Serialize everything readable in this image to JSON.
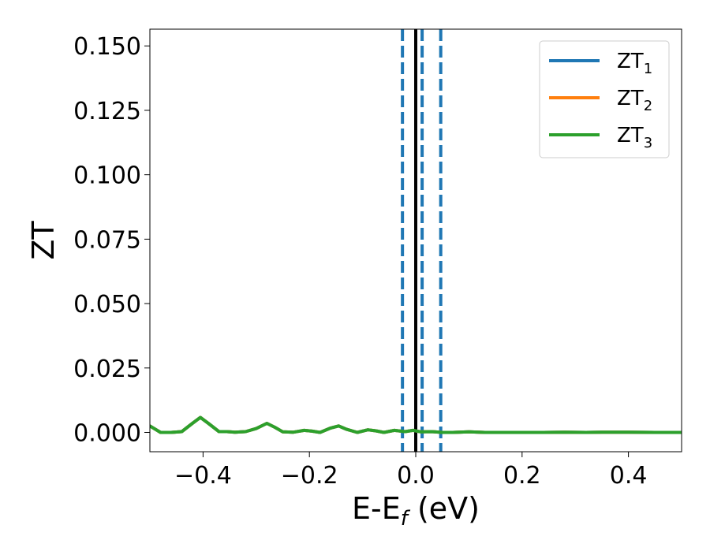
{
  "chart_data": {
    "type": "line",
    "title": "",
    "xlabel": "E-E",
    "xlabel_subscript": "f",
    "xlabel_unit": " (eV)",
    "ylabel": "ZT",
    "xlim": [
      -0.5,
      0.5
    ],
    "ylim": [
      -0.0075,
      0.1565
    ],
    "x_ticks": [
      -0.4,
      -0.2,
      0.0,
      0.2,
      0.4
    ],
    "x_tick_labels": [
      "−0.4",
      "−0.2",
      "0.0",
      "0.2",
      "0.4"
    ],
    "y_ticks": [
      0.0,
      0.025,
      0.05,
      0.075,
      0.1,
      0.125,
      0.15
    ],
    "y_tick_labels": [
      "0.000",
      "0.025",
      "0.050",
      "0.075",
      "0.100",
      "0.125",
      "0.150"
    ],
    "grid": false,
    "legend_position": "top-right",
    "vertical_lines": [
      {
        "x": 0.0,
        "style": "solid",
        "color": "#000000"
      },
      {
        "x": -0.025,
        "style": "dashed",
        "color": "#1f77b4"
      },
      {
        "x": 0.012,
        "style": "dashed",
        "color": "#1f77b4"
      },
      {
        "x": 0.047,
        "style": "dashed",
        "color": "#1f77b4"
      }
    ],
    "series": [
      {
        "name": "ZT",
        "name_subscript": "1",
        "color": "#1f77b4",
        "x": [
          -0.5,
          -0.48,
          -0.46,
          -0.44,
          -0.42,
          -0.405,
          -0.39,
          -0.37,
          -0.355,
          -0.34,
          -0.32,
          -0.3,
          -0.28,
          -0.265,
          -0.25,
          -0.23,
          -0.21,
          -0.195,
          -0.18,
          -0.16,
          -0.145,
          -0.13,
          -0.11,
          -0.09,
          -0.075,
          -0.06,
          -0.04,
          -0.02,
          -0.005,
          0.01,
          0.03,
          0.05,
          0.07,
          0.1,
          0.13,
          0.16,
          0.2,
          0.24,
          0.28,
          0.32,
          0.36,
          0.4,
          0.45,
          0.5
        ],
        "y": [
          0.0025,
          0.0,
          0.0,
          0.0003,
          0.0035,
          0.0058,
          0.0035,
          0.0003,
          0.0003,
          0.0001,
          0.0003,
          0.0015,
          0.0035,
          0.002,
          0.0002,
          0.0001,
          0.0008,
          0.0005,
          0.0,
          0.0017,
          0.0025,
          0.0012,
          0.0,
          0.001,
          0.0006,
          0.0,
          0.0008,
          0.0003,
          0.0008,
          0.0002,
          0.0003,
          0.0,
          0.0,
          0.0002,
          0.0,
          0.0,
          0.0,
          0.0,
          0.0001,
          0.0,
          0.0001,
          0.0001,
          0.0,
          0.0
        ]
      },
      {
        "name": "ZT",
        "name_subscript": "2",
        "color": "#ff7f0e",
        "x": [
          -0.5,
          -0.48,
          -0.46,
          -0.44,
          -0.42,
          -0.405,
          -0.39,
          -0.37,
          -0.355,
          -0.34,
          -0.32,
          -0.3,
          -0.28,
          -0.265,
          -0.25,
          -0.23,
          -0.21,
          -0.195,
          -0.18,
          -0.16,
          -0.145,
          -0.13,
          -0.11,
          -0.09,
          -0.075,
          -0.06,
          -0.04,
          -0.02,
          -0.005,
          0.01,
          0.03,
          0.05,
          0.07,
          0.1,
          0.13,
          0.16,
          0.2,
          0.24,
          0.28,
          0.32,
          0.36,
          0.4,
          0.45,
          0.5
        ],
        "y": [
          0.0025,
          0.0,
          0.0,
          0.0003,
          0.0035,
          0.0058,
          0.0035,
          0.0003,
          0.0003,
          0.0001,
          0.0003,
          0.0015,
          0.0035,
          0.002,
          0.0002,
          0.0001,
          0.0008,
          0.0005,
          0.0,
          0.0017,
          0.0025,
          0.0012,
          0.0,
          0.001,
          0.0006,
          0.0,
          0.0008,
          0.0003,
          0.0008,
          0.0002,
          0.0003,
          0.0,
          0.0,
          0.0002,
          0.0,
          0.0,
          0.0,
          0.0,
          0.0001,
          0.0,
          0.0001,
          0.0001,
          0.0,
          0.0
        ]
      },
      {
        "name": "ZT",
        "name_subscript": "3",
        "color": "#2ca02c",
        "x": [
          -0.5,
          -0.48,
          -0.46,
          -0.44,
          -0.42,
          -0.405,
          -0.39,
          -0.37,
          -0.355,
          -0.34,
          -0.32,
          -0.3,
          -0.28,
          -0.265,
          -0.25,
          -0.23,
          -0.21,
          -0.195,
          -0.18,
          -0.16,
          -0.145,
          -0.13,
          -0.11,
          -0.09,
          -0.075,
          -0.06,
          -0.04,
          -0.02,
          -0.005,
          0.01,
          0.03,
          0.05,
          0.07,
          0.1,
          0.13,
          0.16,
          0.2,
          0.24,
          0.28,
          0.32,
          0.36,
          0.4,
          0.45,
          0.5
        ],
        "y": [
          0.0025,
          0.0,
          0.0,
          0.0003,
          0.0035,
          0.0058,
          0.0035,
          0.0003,
          0.0003,
          0.0001,
          0.0003,
          0.0015,
          0.0035,
          0.002,
          0.0002,
          0.0001,
          0.0008,
          0.0005,
          0.0,
          0.0017,
          0.0025,
          0.0012,
          0.0,
          0.001,
          0.0006,
          0.0,
          0.0008,
          0.0003,
          0.0008,
          0.0002,
          0.0003,
          0.0,
          0.0,
          0.0002,
          0.0,
          0.0,
          0.0,
          0.0,
          0.0001,
          0.0,
          0.0001,
          0.0001,
          0.0,
          0.0
        ]
      }
    ]
  }
}
